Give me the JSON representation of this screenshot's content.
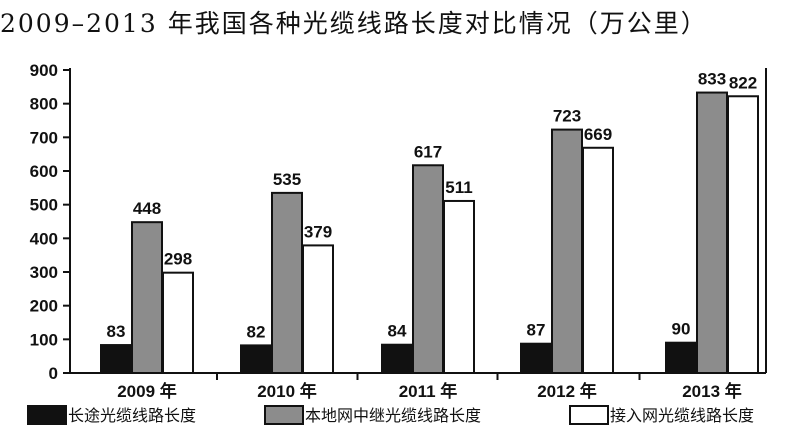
{
  "chart_data": {
    "type": "bar",
    "title": "2009–2013 年我国各种光缆线路长度对比情况（万公里）",
    "categories": [
      "2009 年",
      "2010 年",
      "2011 年",
      "2012 年",
      "2013 年"
    ],
    "series": [
      {
        "name": "长途光缆线路长度",
        "values": [
          83,
          82,
          84,
          87,
          90
        ],
        "color": "#111111"
      },
      {
        "name": "本地网中继光缆线路长度",
        "values": [
          448,
          535,
          617,
          723,
          833
        ],
        "color": "#8c8c8c"
      },
      {
        "name": "接入网光缆线路长度",
        "values": [
          298,
          379,
          511,
          669,
          822
        ],
        "color": "#ffffff"
      }
    ],
    "ylim": [
      0,
      900
    ],
    "yticks": [
      0,
      100,
      200,
      300,
      400,
      500,
      600,
      700,
      800,
      900
    ],
    "xlabel": "",
    "ylabel": "",
    "grid": false,
    "legend": "bottom"
  }
}
